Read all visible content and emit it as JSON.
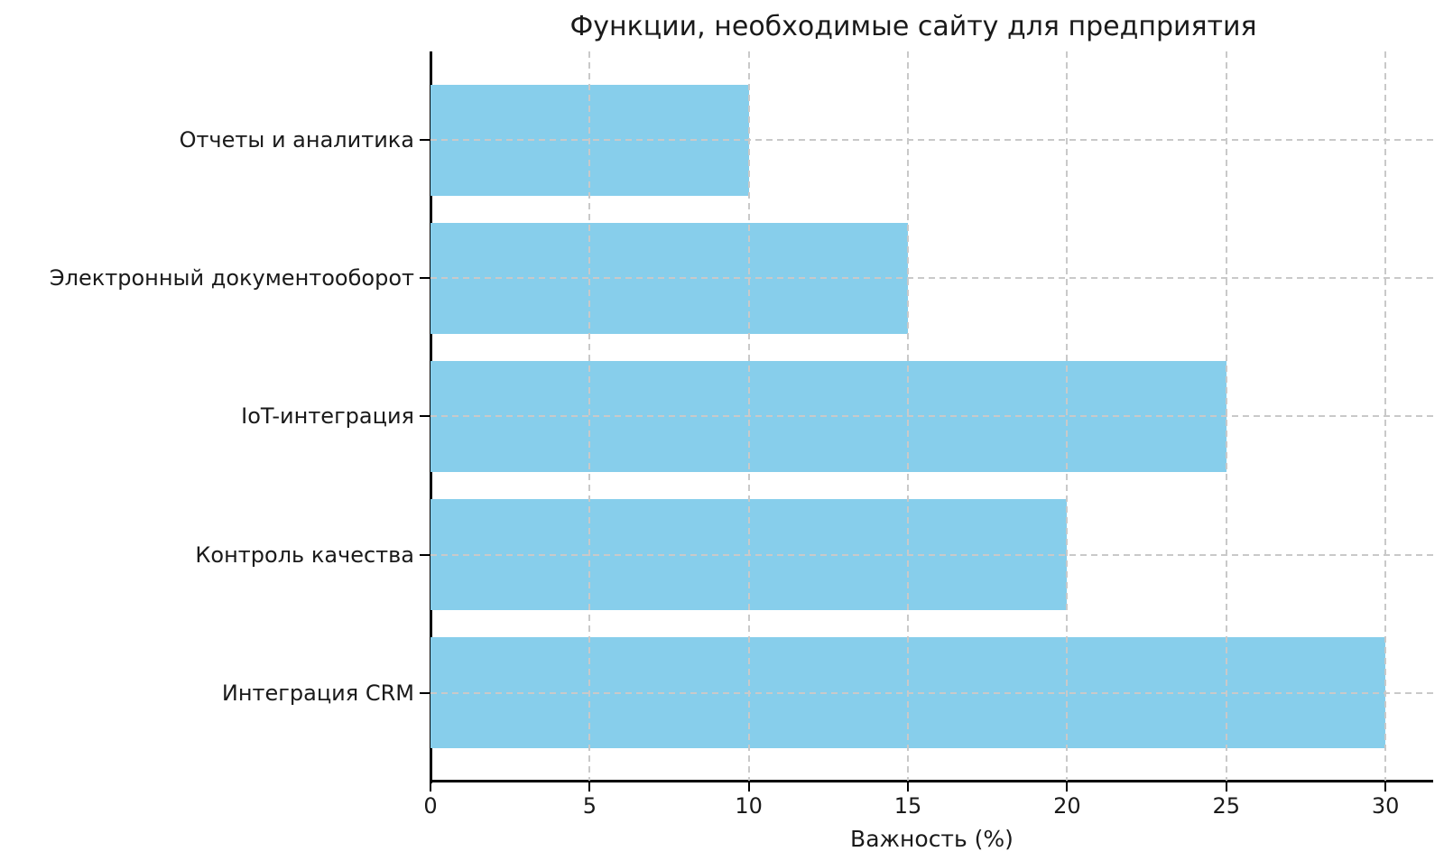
{
  "chart_data": {
    "type": "bar",
    "orientation": "horizontal",
    "title": "Функции, необходимые сайту для предприятия",
    "xlabel": "Важность (%)",
    "ylabel": "",
    "categories": [
      "Отчеты и аналитика",
      "Электронный документооборот",
      "IoT-интеграция",
      "Контроль качества",
      "Интеграция CRM"
    ],
    "values": [
      10,
      15,
      25,
      20,
      30
    ],
    "xticks": [
      0,
      5,
      10,
      15,
      20,
      25,
      30
    ],
    "xlim": [
      0,
      31.5
    ],
    "bar_color": "#87CEEB",
    "grid": "dashed, both axes, light gray, drawn over bars",
    "grid_color": "#c9c9c9",
    "legend": "none",
    "background": "#ffffff"
  }
}
